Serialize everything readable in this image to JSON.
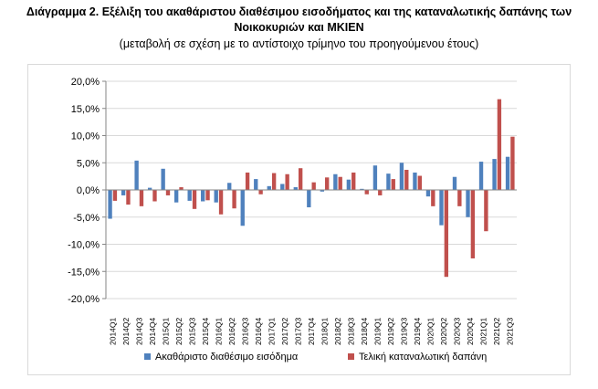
{
  "title_line1": "Διάγραμμα 2. Εξέλιξη του ακαθάριστου διαθέσιμου εισοδήματος και της καταναλωτικής δαπάνης των",
  "title_line2": "Νοικοκυριών και ΜΚΙΕΝ",
  "subtitle": "(μεταβολή σε σχέση με το αντίστοιχο τρίμηνο του προηγούμενου έτους)",
  "colors": {
    "series1": "#4f81bd",
    "series2": "#c0504d",
    "grid": "#d9d9d9",
    "axis": "#868686"
  },
  "chart_data": {
    "type": "bar",
    "categories": [
      "2014Q1",
      "2014Q2",
      "2014Q3",
      "2014Q4",
      "2015Q1",
      "2015Q2",
      "2015Q3",
      "2015Q4",
      "2016Q1",
      "2016Q2",
      "2016Q3",
      "2016Q4",
      "2017Q1",
      "2017Q2",
      "2017Q3",
      "2017Q4",
      "2018Q1",
      "2018Q2",
      "2018Q3",
      "2018Q4",
      "2019Q1",
      "2019Q2",
      "2019Q3",
      "2019Q4",
      "2020Q1",
      "2020Q2",
      "2020Q3",
      "2020Q4",
      "2021Q1",
      "2021Q2",
      "2021Q3"
    ],
    "series": [
      {
        "name": "Ακαθάριστο διαθέσιμο εισόδημα",
        "values": [
          -5.3,
          -1.0,
          5.4,
          0.4,
          3.9,
          -2.3,
          -2.0,
          -2.1,
          -2.3,
          1.3,
          -6.6,
          2.0,
          0.7,
          1.1,
          0.5,
          -3.2,
          -0.3,
          2.9,
          1.9,
          0.2,
          4.5,
          3.0,
          5.0,
          3.2,
          -1.2,
          -6.5,
          2.4,
          -5.0,
          5.2,
          5.7,
          6.1
        ]
      },
      {
        "name": "Τελική καταναλωτική δαπάνη",
        "values": [
          -2.0,
          -2.7,
          -3.0,
          -2.1,
          -1.0,
          0.5,
          -3.5,
          -1.9,
          -4.5,
          -3.4,
          3.2,
          -0.8,
          3.1,
          2.9,
          4.0,
          1.4,
          2.3,
          2.4,
          3.2,
          -0.8,
          -1.0,
          2.0,
          3.7,
          2.6,
          -3.0,
          -16.0,
          -3.0,
          -12.6,
          -7.6,
          16.7,
          9.8
        ]
      }
    ],
    "ytick_labels": [
      "20,0%",
      "15,0%",
      "10,0%",
      "5,0%",
      "0,0%",
      "-5,0%",
      "-10,0%",
      "-15,0%",
      "-20,0%"
    ],
    "ylim": [
      -20,
      20
    ],
    "grid": true,
    "legend": "bottom"
  }
}
